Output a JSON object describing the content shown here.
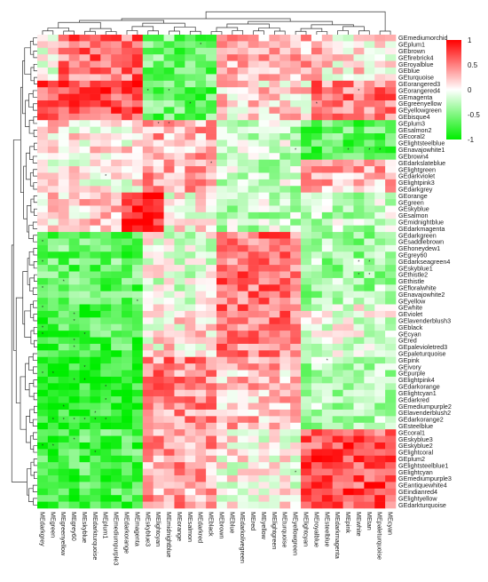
{
  "chart_data": {
    "type": "heatmap",
    "title": "",
    "xlabel": "",
    "ylabel": "",
    "rows": [
      "GEmediumorchid",
      "GEplum1",
      "GEbrown",
      "GEfirebrick4",
      "GEroyalblue",
      "GEblue",
      "GEturquoise",
      "GEorangered3",
      "GEorangered4",
      "GEmagenta",
      "GEgreenyellow",
      "GEyellowgreen",
      "GEbisque4",
      "GEplum3",
      "GEsalmon2",
      "GEcoral2",
      "GElightsteelblue",
      "GEnavajowhite1",
      "GEbrown4",
      "GEdarkslateblue",
      "GElightgreen",
      "GEdarkviolet",
      "GElightpink3",
      "GEdarkgrey",
      "GEorange",
      "GEgreen",
      "GEskyblue",
      "GEsalmon",
      "GEmidnightblue",
      "GEdarkmagenta",
      "GEdarkgreen",
      "GEsaddlebrown",
      "GEhoneydew1",
      "GEgrey60",
      "GEdarkseagreen4",
      "GEskyblue1",
      "GEthistle2",
      "GEthistle",
      "GEfloralwhite",
      "GEnavajowhite2",
      "GEyellow",
      "GEwhite",
      "GEviolet",
      "GElavenderblush3",
      "GEblack",
      "GEcyan",
      "GEred",
      "GEpalevioletred3",
      "GEpaleturquoise",
      "GEpink",
      "GEivory",
      "GEpurple",
      "GElightpink4",
      "GEdarkorange",
      "GElightcyan1",
      "GEdarkred",
      "GEmediumpurple2",
      "GElavenderblush2",
      "GEdarkorange2",
      "GEsteelblue",
      "GEcoral1",
      "GEskyblue3",
      "GEskyblue2",
      "GElightcoral",
      "GEplum2",
      "GElightsteelblue1",
      "GElightcyan",
      "GEmediumpurple3",
      "GEantiquewhite4",
      "GEindianred4",
      "GElightyellow",
      "GEdarkturquoise"
    ],
    "columns": [
      "MEdarkgrey",
      "MEgreen",
      "MEgreenyellow",
      "MEgrey60",
      "MEskyblue",
      "MEdarkturquoise",
      "MEplum1",
      "MEmediumpurple3",
      "MEdarkorange",
      "MEmagenta",
      "MEskyblue3",
      "MElightcyan",
      "MEmidnightblue",
      "MEorange",
      "MEsalmon",
      "MEdarkred",
      "MEblack",
      "MEbrown",
      "MEblue",
      "MEdarkolivegreen",
      "MEred",
      "MEyellow",
      "MElightgreen",
      "MEturquoise",
      "MEyellowgreen",
      "MElightcyan",
      "MEroyalblue",
      "MEsteelblue",
      "MEdarkmagenta",
      "MEpink",
      "MEwhite",
      "MEtan",
      "MEpaleturquoise",
      "MEcyan"
    ],
    "value_range": [
      -1,
      1
    ],
    "colorbar_ticks": [
      "1",
      "0.5",
      "0",
      "-0.5",
      "-1"
    ],
    "colors": {
      "high": "#ff0000",
      "mid": "#ffffff",
      "low": "#00ee00"
    },
    "legend_position": "right",
    "blocks": [
      {
        "r": [
          0,
          6
        ],
        "c": [
          2,
          9
        ],
        "v": 0.55
      },
      {
        "r": [
          0,
          6
        ],
        "c": [
          10,
          16
        ],
        "v": -0.55
      },
      {
        "r": [
          0,
          6
        ],
        "c": [
          17,
          26
        ],
        "v": 0.3
      },
      {
        "r": [
          0,
          6
        ],
        "c": [
          27,
          33
        ],
        "v": 0.1
      },
      {
        "r": [
          7,
          12
        ],
        "c": [
          0,
          9
        ],
        "v": 0.7
      },
      {
        "r": [
          7,
          12
        ],
        "c": [
          10,
          16
        ],
        "v": -0.6
      },
      {
        "r": [
          7,
          12
        ],
        "c": [
          17,
          25
        ],
        "v": 0.15
      },
      {
        "r": [
          7,
          12
        ],
        "c": [
          26,
          33
        ],
        "v": 0.5
      },
      {
        "r": [
          13,
          18
        ],
        "c": [
          0,
          9
        ],
        "v": 0.1
      },
      {
        "r": [
          13,
          18
        ],
        "c": [
          10,
          16
        ],
        "v": 0.3
      },
      {
        "r": [
          13,
          18
        ],
        "c": [
          17,
          24
        ],
        "v": -0.2
      },
      {
        "r": [
          13,
          18
        ],
        "c": [
          25,
          33
        ],
        "v": -0.6
      },
      {
        "r": [
          19,
          23
        ],
        "c": [
          0,
          9
        ],
        "v": 0.05
      },
      {
        "r": [
          19,
          23
        ],
        "c": [
          10,
          16
        ],
        "v": 0.35
      },
      {
        "r": [
          19,
          23
        ],
        "c": [
          17,
          24
        ],
        "v": -0.2
      },
      {
        "r": [
          19,
          23
        ],
        "c": [
          25,
          33
        ],
        "v": 0.3
      },
      {
        "r": [
          24,
          29
        ],
        "c": [
          0,
          7
        ],
        "v": 0.15
      },
      {
        "r": [
          24,
          29
        ],
        "c": [
          8,
          11
        ],
        "v": 0.85
      },
      {
        "r": [
          24,
          29
        ],
        "c": [
          12,
          16
        ],
        "v": 0.0
      },
      {
        "r": [
          24,
          29
        ],
        "c": [
          17,
          33
        ],
        "v": -0.25
      },
      {
        "r": [
          30,
          40
        ],
        "c": [
          0,
          9
        ],
        "v": -0.6
      },
      {
        "r": [
          30,
          40
        ],
        "c": [
          10,
          16
        ],
        "v": -0.1
      },
      {
        "r": [
          30,
          40
        ],
        "c": [
          17,
          24
        ],
        "v": 0.55
      },
      {
        "r": [
          30,
          40
        ],
        "c": [
          25,
          33
        ],
        "v": -0.35
      },
      {
        "r": [
          41,
          48
        ],
        "c": [
          0,
          9
        ],
        "v": -0.7
      },
      {
        "r": [
          41,
          48
        ],
        "c": [
          10,
          16
        ],
        "v": 0.1
      },
      {
        "r": [
          41,
          48
        ],
        "c": [
          17,
          24
        ],
        "v": 0.5
      },
      {
        "r": [
          41,
          48
        ],
        "c": [
          25,
          33
        ],
        "v": -0.1
      },
      {
        "r": [
          49,
          59
        ],
        "c": [
          0,
          9
        ],
        "v": -0.85
      },
      {
        "r": [
          49,
          59
        ],
        "c": [
          10,
          16
        ],
        "v": 0.45
      },
      {
        "r": [
          49,
          59
        ],
        "c": [
          17,
          24
        ],
        "v": 0.25
      },
      {
        "r": [
          49,
          59
        ],
        "c": [
          25,
          33
        ],
        "v": -0.3
      },
      {
        "r": [
          60,
          71
        ],
        "c": [
          0,
          9
        ],
        "v": -0.7
      },
      {
        "r": [
          60,
          71
        ],
        "c": [
          10,
          16
        ],
        "v": 0.35
      },
      {
        "r": [
          60,
          71
        ],
        "c": [
          17,
          24
        ],
        "v": 0.0
      },
      {
        "r": [
          60,
          71
        ],
        "c": [
          25,
          33
        ],
        "v": 0.65
      }
    ],
    "significance_marks": [
      [
        1,
        15
      ],
      [
        8,
        10
      ],
      [
        8,
        12
      ],
      [
        8,
        30
      ],
      [
        10,
        14
      ],
      [
        10,
        26
      ],
      [
        13,
        11
      ],
      [
        13,
        12
      ],
      [
        17,
        24
      ],
      [
        17,
        29
      ],
      [
        17,
        31
      ],
      [
        17,
        32
      ],
      [
        19,
        16
      ],
      [
        21,
        6
      ],
      [
        31,
        0
      ],
      [
        33,
        34
      ],
      [
        34,
        0
      ],
      [
        34,
        30
      ],
      [
        34,
        31
      ],
      [
        36,
        30
      ],
      [
        36,
        31
      ],
      [
        37,
        2
      ],
      [
        38,
        0
      ],
      [
        40,
        9
      ],
      [
        41,
        0
      ],
      [
        42,
        3
      ],
      [
        43,
        3
      ],
      [
        44,
        0
      ],
      [
        45,
        0
      ],
      [
        45,
        4
      ],
      [
        46,
        3
      ],
      [
        47,
        3
      ],
      [
        49,
        27
      ],
      [
        50,
        4
      ],
      [
        51,
        0
      ],
      [
        51,
        1
      ],
      [
        52,
        3
      ],
      [
        52,
        4
      ],
      [
        53,
        6
      ],
      [
        55,
        6
      ],
      [
        56,
        2
      ],
      [
        57,
        5
      ],
      [
        58,
        1
      ],
      [
        58,
        2
      ],
      [
        58,
        3
      ],
      [
        58,
        4
      ],
      [
        58,
        5
      ],
      [
        58,
        6
      ],
      [
        61,
        3
      ],
      [
        62,
        0
      ],
      [
        62,
        1
      ],
      [
        63,
        5
      ],
      [
        66,
        24
      ]
    ]
  }
}
